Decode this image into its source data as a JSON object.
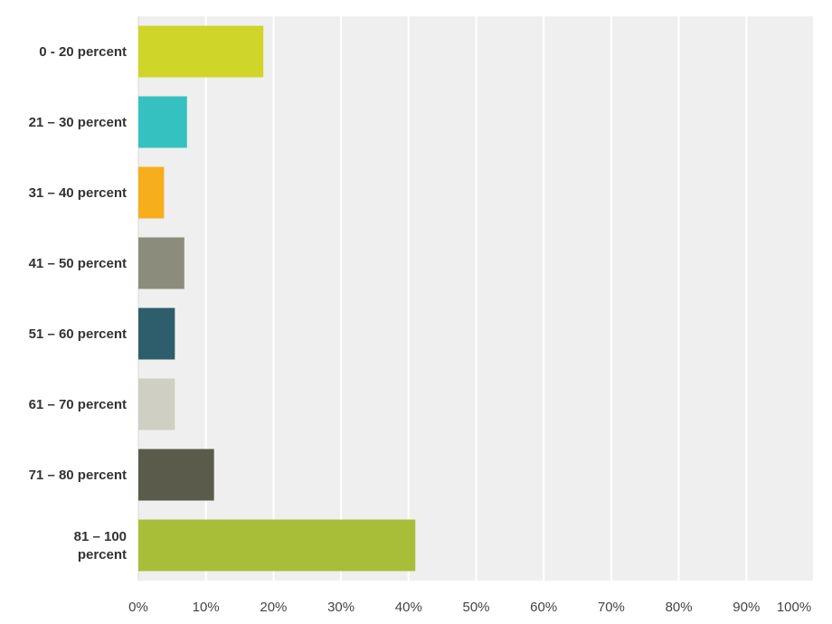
{
  "chart_data": {
    "type": "bar",
    "orientation": "horizontal",
    "categories": [
      [
        "0 - 20 percent"
      ],
      [
        "21 – 30 percent"
      ],
      [
        "31 – 40 percent"
      ],
      [
        "41 – 50 percent"
      ],
      [
        "51 – 60 percent"
      ],
      [
        "61 – 70 percent"
      ],
      [
        "71 – 80 percent"
      ],
      [
        "81 – 100",
        "percent"
      ]
    ],
    "values": [
      18.5,
      7.2,
      3.8,
      6.8,
      5.4,
      5.4,
      11.2,
      41.0
    ],
    "colors": [
      "#d0d52a",
      "#35c1bf",
      "#f6ae1d",
      "#8c8c7c",
      "#2e5d6b",
      "#cfcfc3",
      "#5b5b4b",
      "#a8be38"
    ],
    "xlim": [
      0,
      100
    ],
    "xticks": [
      "0%",
      "10%",
      "20%",
      "30%",
      "40%",
      "50%",
      "60%",
      "70%",
      "80%",
      "90%",
      "100%"
    ],
    "grid": true,
    "plot_background": "#efefef",
    "title": "",
    "xlabel": "",
    "ylabel": ""
  }
}
